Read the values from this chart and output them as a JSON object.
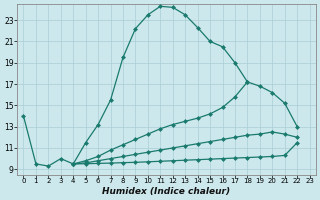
{
  "xlabel": "Humidex (Indice chaleur)",
  "background_color": "#cce8ec",
  "line_color": "#1a7a6e",
  "grid_color": "#aacdd4",
  "xlim": [
    -0.5,
    23.5
  ],
  "ylim": [
    8.5,
    24.5
  ],
  "yticks": [
    9,
    11,
    13,
    15,
    17,
    19,
    21,
    23
  ],
  "xticks": [
    0,
    1,
    2,
    3,
    4,
    5,
    6,
    7,
    8,
    9,
    10,
    11,
    12,
    13,
    14,
    15,
    16,
    17,
    18,
    19,
    20,
    21,
    22,
    23
  ],
  "line1_x": [
    0,
    1,
    2,
    3,
    4,
    5,
    6,
    7,
    8,
    9,
    10,
    11,
    12,
    13,
    14,
    15,
    16,
    17,
    18
  ],
  "line1_y": [
    14.0,
    9.5,
    9.3,
    10.0,
    9.5,
    11.5,
    13.2,
    15.5,
    19.5,
    22.2,
    23.5,
    24.3,
    24.2,
    23.5,
    22.3,
    21.0,
    20.5,
    19.0,
    17.2
  ],
  "line2_x": [
    4,
    5,
    6,
    7,
    8,
    9,
    10,
    11,
    12,
    13,
    14,
    15,
    16,
    17,
    18,
    19,
    20,
    21,
    22
  ],
  "line2_y": [
    9.5,
    9.8,
    10.2,
    10.8,
    11.3,
    11.8,
    12.3,
    12.8,
    13.2,
    13.5,
    13.8,
    14.2,
    14.8,
    15.8,
    17.2,
    16.8,
    16.2,
    15.2,
    13.0
  ],
  "line3_x": [
    4,
    5,
    6,
    7,
    8,
    9,
    10,
    11,
    12,
    13,
    14,
    15,
    16,
    17,
    18,
    19,
    20,
    21,
    22
  ],
  "line3_y": [
    9.5,
    9.6,
    9.8,
    10.0,
    10.2,
    10.4,
    10.6,
    10.8,
    11.0,
    11.2,
    11.4,
    11.6,
    11.8,
    12.0,
    12.2,
    12.3,
    12.5,
    12.3,
    12.0
  ],
  "line4_x": [
    4,
    5,
    6,
    7,
    8,
    9,
    10,
    11,
    12,
    13,
    14,
    15,
    16,
    17,
    18,
    19,
    20,
    21,
    22
  ],
  "line4_y": [
    9.5,
    9.52,
    9.55,
    9.58,
    9.62,
    9.65,
    9.7,
    9.75,
    9.8,
    9.85,
    9.9,
    9.95,
    10.0,
    10.05,
    10.1,
    10.15,
    10.2,
    10.3,
    11.5
  ]
}
